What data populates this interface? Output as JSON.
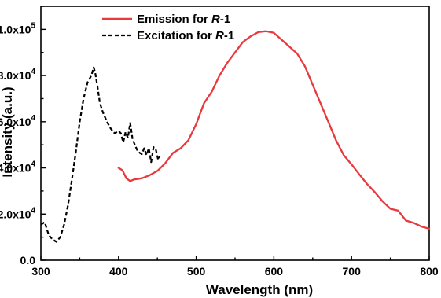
{
  "chart_data": {
    "type": "line",
    "xlabel": "Wavelength (nm)",
    "ylabel": "Intensity (a.u.)",
    "xlim": [
      300,
      800
    ],
    "ylim": [
      0,
      110000
    ],
    "x_ticks": [
      {
        "value": 300,
        "label": "300"
      },
      {
        "value": 400,
        "label": "400"
      },
      {
        "value": 500,
        "label": "500"
      },
      {
        "value": 600,
        "label": "600"
      },
      {
        "value": 700,
        "label": "700"
      },
      {
        "value": 800,
        "label": "800"
      }
    ],
    "y_ticks": [
      {
        "value": 0,
        "mantissa": "0.0",
        "exp": ""
      },
      {
        "value": 20000,
        "mantissa": "2.0x10",
        "exp": "4"
      },
      {
        "value": 40000,
        "mantissa": "4.0x10",
        "exp": "4"
      },
      {
        "value": 60000,
        "mantissa": "6.0x10",
        "exp": "4"
      },
      {
        "value": 80000,
        "mantissa": "8.0x10",
        "exp": "4"
      },
      {
        "value": 100000,
        "mantissa": "1.0x10",
        "exp": "5"
      }
    ],
    "legend_position": "top-left",
    "series": [
      {
        "name": "Emission for R-1",
        "legend_prefix": "Emission for ",
        "legend_italic": "R",
        "legend_suffix": "-1",
        "color": "#e8393d",
        "style": "solid",
        "points": [
          [
            400,
            40000
          ],
          [
            405,
            39000
          ],
          [
            410,
            35500
          ],
          [
            415,
            34300
          ],
          [
            420,
            35000
          ],
          [
            430,
            35500
          ],
          [
            440,
            36800
          ],
          [
            450,
            38700
          ],
          [
            460,
            42000
          ],
          [
            470,
            46500
          ],
          [
            480,
            48500
          ],
          [
            490,
            52000
          ],
          [
            500,
            59000
          ],
          [
            510,
            68000
          ],
          [
            520,
            73000
          ],
          [
            530,
            80000
          ],
          [
            540,
            85500
          ],
          [
            550,
            90000
          ],
          [
            560,
            94500
          ],
          [
            570,
            97000
          ],
          [
            580,
            98800
          ],
          [
            590,
            99200
          ],
          [
            600,
            98500
          ],
          [
            610,
            95500
          ],
          [
            620,
            92500
          ],
          [
            630,
            89500
          ],
          [
            640,
            84000
          ],
          [
            650,
            76000
          ],
          [
            660,
            68000
          ],
          [
            670,
            60000
          ],
          [
            680,
            52000
          ],
          [
            690,
            45500
          ],
          [
            700,
            41500
          ],
          [
            710,
            37200
          ],
          [
            720,
            33000
          ],
          [
            730,
            29500
          ],
          [
            740,
            25500
          ],
          [
            750,
            22300
          ],
          [
            760,
            21500
          ],
          [
            770,
            17200
          ],
          [
            780,
            16200
          ],
          [
            790,
            14600
          ],
          [
            800,
            13700
          ]
        ]
      },
      {
        "name": "Excitation for R-1",
        "legend_prefix": "Excitation for ",
        "legend_italic": "R",
        "legend_suffix": "-1",
        "color": "#000000",
        "style": "dashed",
        "points": [
          [
            300,
            15500
          ],
          [
            305,
            16500
          ],
          [
            310,
            11000
          ],
          [
            315,
            9000
          ],
          [
            320,
            8000
          ],
          [
            325,
            10000
          ],
          [
            330,
            15500
          ],
          [
            335,
            24000
          ],
          [
            340,
            35000
          ],
          [
            345,
            47000
          ],
          [
            350,
            60000
          ],
          [
            355,
            70000
          ],
          [
            360,
            77000
          ],
          [
            365,
            80000
          ],
          [
            368,
            83500
          ],
          [
            370,
            81000
          ],
          [
            373,
            75000
          ],
          [
            376,
            68000
          ],
          [
            380,
            64000
          ],
          [
            385,
            60000
          ],
          [
            390,
            57000
          ],
          [
            395,
            55000
          ],
          [
            400,
            56000
          ],
          [
            403,
            55000
          ],
          [
            406,
            51000
          ],
          [
            409,
            55500
          ],
          [
            412,
            53000
          ],
          [
            415,
            59500
          ],
          [
            418,
            52500
          ],
          [
            421,
            50000
          ],
          [
            425,
            47000
          ],
          [
            430,
            46000
          ],
          [
            433,
            48500
          ],
          [
            436,
            45500
          ],
          [
            439,
            48500
          ],
          [
            442,
            42500
          ],
          [
            445,
            49000
          ],
          [
            448,
            48000
          ],
          [
            451,
            43500
          ],
          [
            453,
            45000
          ]
        ]
      }
    ]
  }
}
